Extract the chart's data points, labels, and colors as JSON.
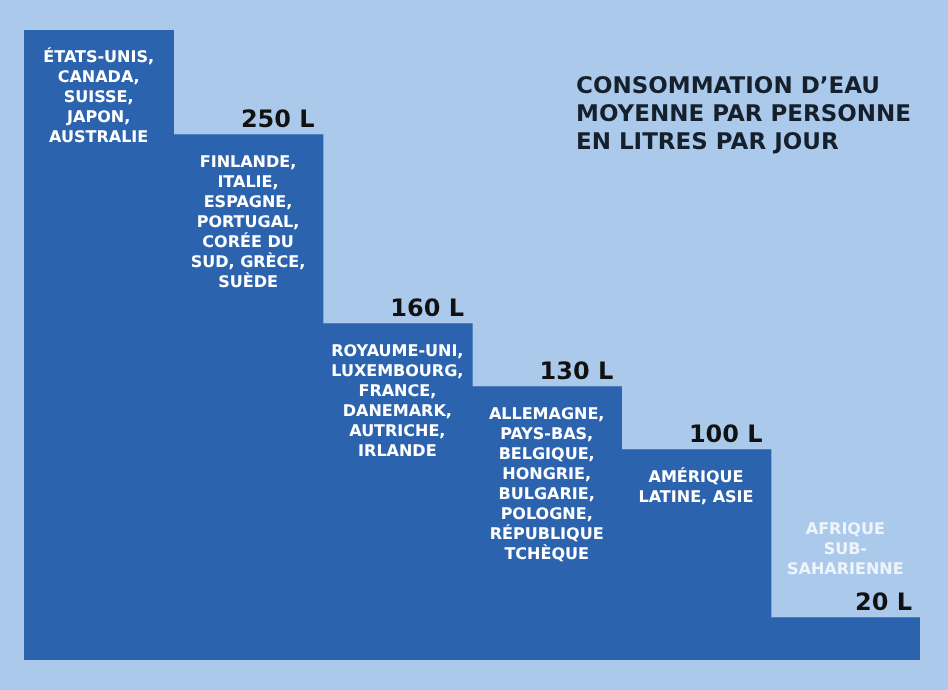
{
  "chart_data": {
    "type": "bar",
    "title": "CONSOMMATION D’EAU MOYENNE PAR PERSONNE EN LITRES PAR JOUR",
    "categories": [
      "ÉTATS-UNIS, CANADA, SUISSE, JAPON, AUSTRALIE",
      "FINLANDE, ITALIE, ESPAGNE, PORTUGAL, CORÉE DU SUD, GRÈCE, SUÈDE",
      "ROYAUME-UNI, LUXEMBOURG, FRANCE, DANEMARK, AUTRICHE, IRLANDE",
      "ALLEMAGNE, PAYS-BAS, BELGIQUE, HONGRIE, BULGARIE, POLOGNE, RÉPUBLIQUE TCHÈQUE",
      "AMÉRIQUE LATINE, ASIE",
      "AFRIQUE SUB-SAHARIENNE"
    ],
    "values": [
      300,
      250,
      160,
      130,
      100,
      20
    ],
    "value_labels": [
      null,
      "250 L",
      "160 L",
      "130 L",
      "100 L",
      "20 L"
    ],
    "color": "#2c63ae",
    "ylim": [
      0,
      300
    ],
    "tick_labels": false,
    "legend": false
  }
}
